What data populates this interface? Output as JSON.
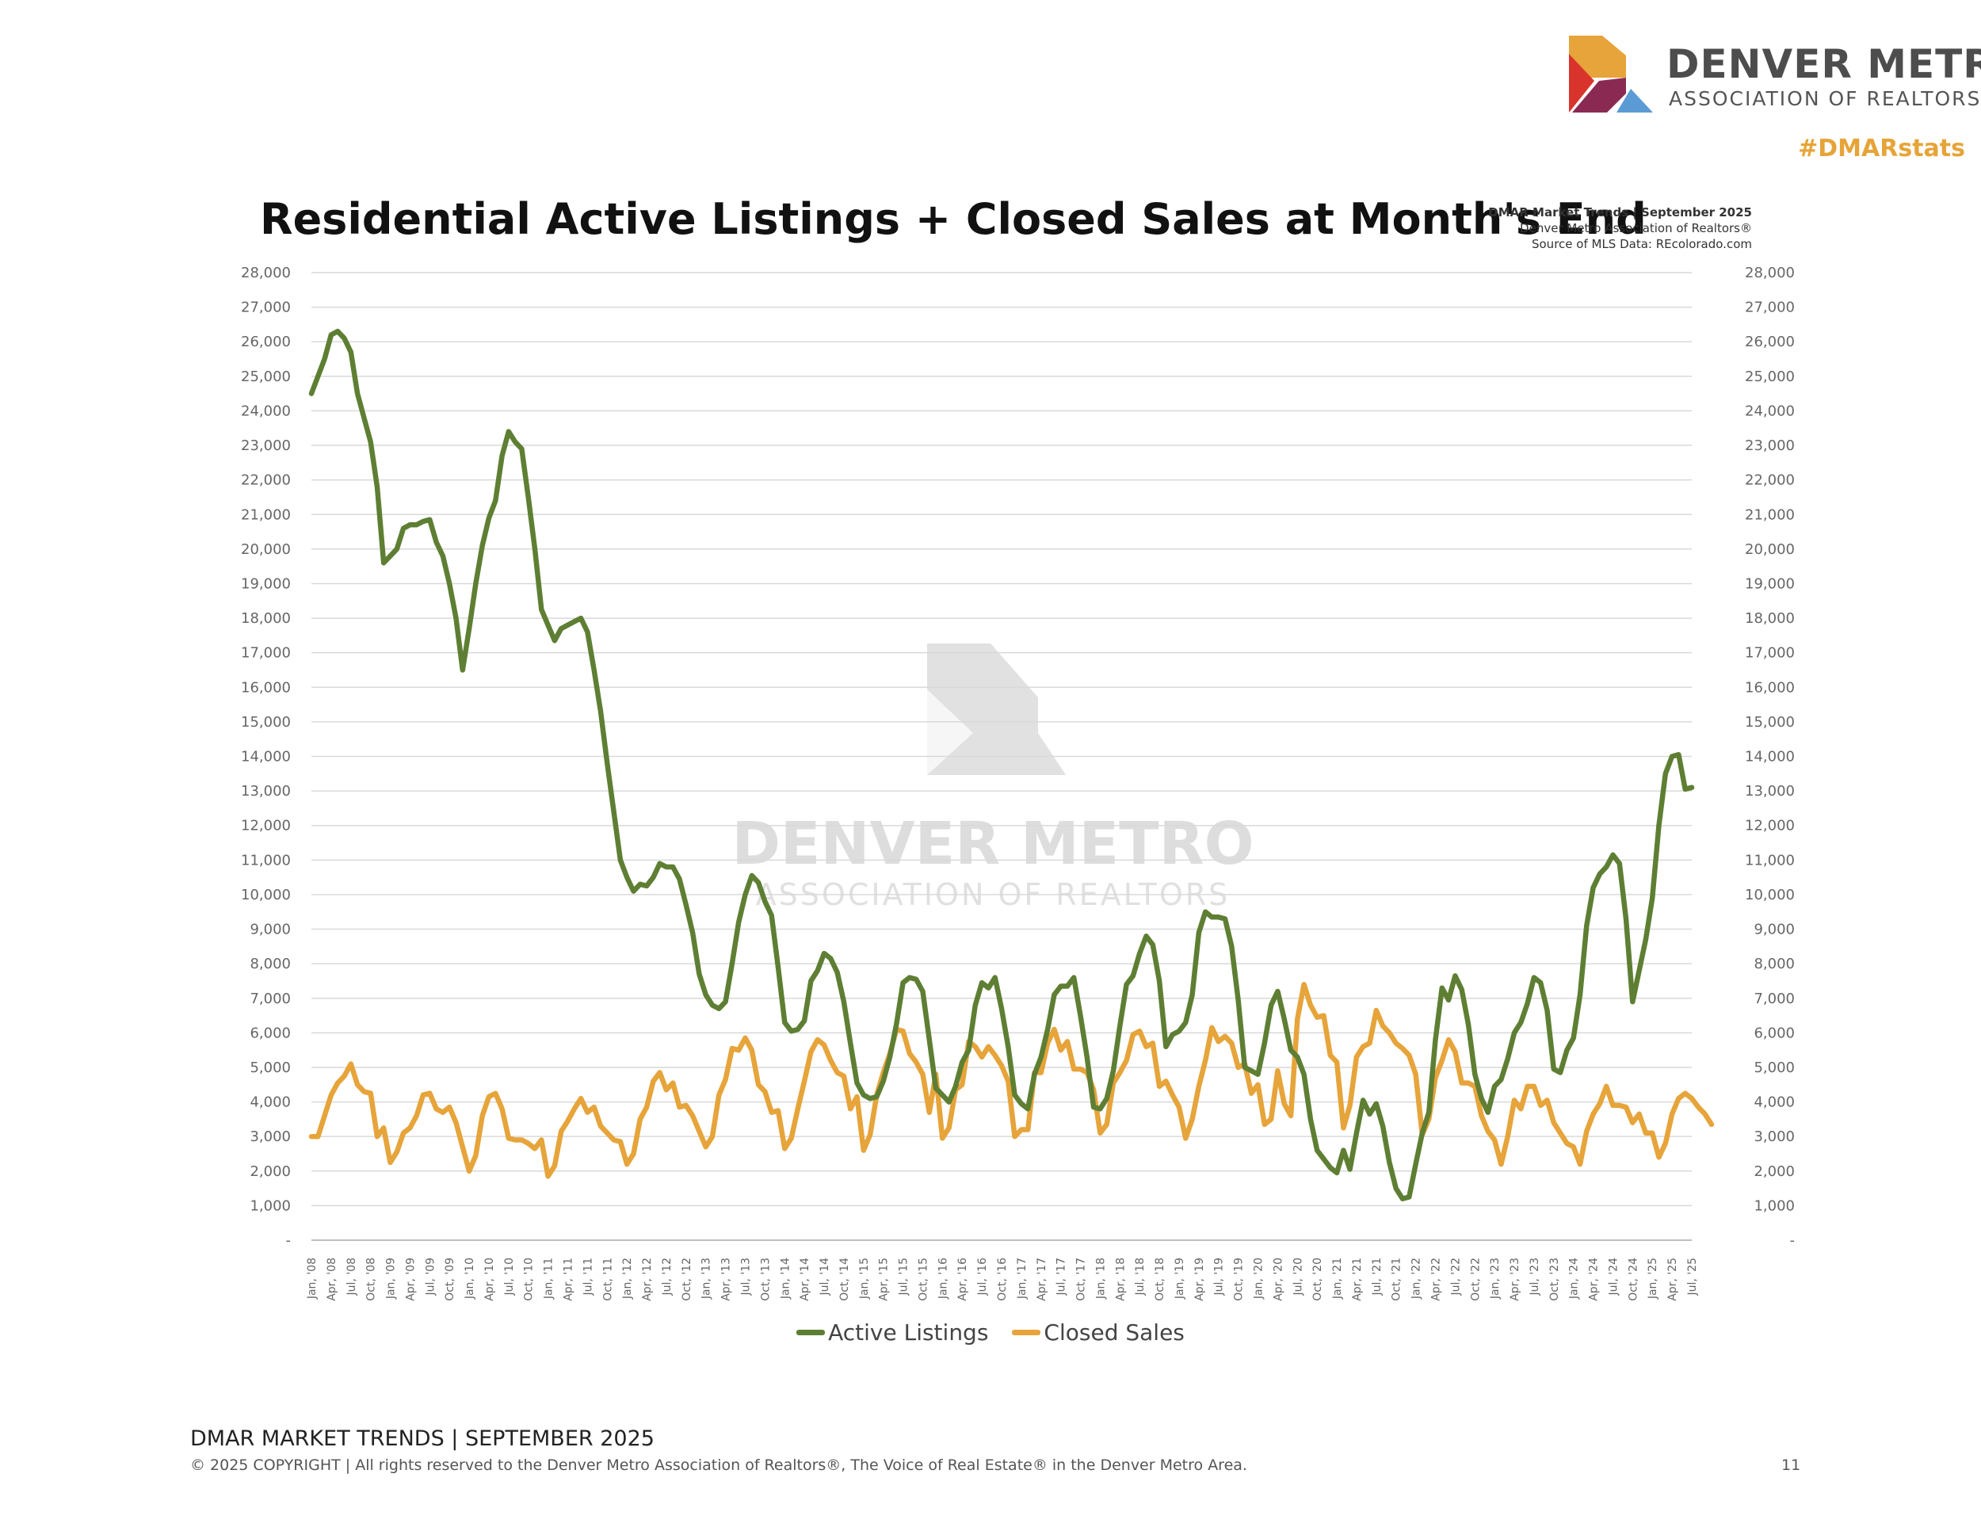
{
  "header": {
    "logo_line1": "DENVER METRO",
    "logo_line2": "ASSOCIATION OF REALTORS",
    "hashtag": "#DMARstats"
  },
  "chart_source": {
    "line1": "DMAR Market Trends | September 2025",
    "line2": "Denver Metro Association of Realtors®",
    "line3": "Source of MLS Data: REcolorado.com"
  },
  "watermark": {
    "line1": "DENVER METRO",
    "line2": "ASSOCIATION OF REALTORS"
  },
  "colors": {
    "active_listings": "#5e7f33",
    "closed_sales": "#e6a43a",
    "logo_orange": "#e6a43a",
    "logo_red": "#d9342b",
    "logo_purple": "#8a2a52",
    "logo_blue": "#5b9bd5"
  },
  "chart_data": {
    "type": "line",
    "title": "Residential Active Listings + Closed Sales at Month's End",
    "xlabel": "",
    "ylabel": "",
    "ylim": [
      0,
      28000
    ],
    "yticks": [
      "-",
      "1,000",
      "2,000",
      "3,000",
      "4,000",
      "5,000",
      "6,000",
      "7,000",
      "8,000",
      "9,000",
      "10,000",
      "11,000",
      "12,000",
      "13,000",
      "14,000",
      "15,000",
      "16,000",
      "17,000",
      "18,000",
      "19,000",
      "20,000",
      "21,000",
      "22,000",
      "23,000",
      "24,000",
      "25,000",
      "26,000",
      "27,000",
      "28,000"
    ],
    "secondary_y_axis": true,
    "grid": true,
    "legend_position": "bottom",
    "x_start": "Jan, '08",
    "x_end": "Sep, '25",
    "x_tick_labels": [
      "Jan, '08",
      "Apr, '08",
      "Jul, '08",
      "Oct, '08",
      "Jan, '09",
      "Apr, '09",
      "Jul, '09",
      "Oct, '09",
      "Jan, '10",
      "Apr, '10",
      "Jul, '10",
      "Oct, '10",
      "Jan, '11",
      "Apr, '11",
      "Jul, '11",
      "Oct, '11",
      "Jan, '12",
      "Apr, '12",
      "Jul, '12",
      "Oct, '12",
      "Jan, '13",
      "Apr, '13",
      "Jul, '13",
      "Oct, '13",
      "Jan, '14",
      "Apr, '14",
      "Jul, '14",
      "Oct, '14",
      "Jan, '15",
      "Apr, '15",
      "Jul, '15",
      "Oct, '15",
      "Jan, '16",
      "Apr, '16",
      "Jul, '16",
      "Oct, '16",
      "Jan, '17",
      "Apr, '17",
      "Jul, '17",
      "Oct, '17",
      "Jan, '18",
      "Apr, '18",
      "Jul, '18",
      "Oct, '18",
      "Jan, '19",
      "Apr, '19",
      "Jul, '19",
      "Oct, '19",
      "Jan, '20",
      "Apr, '20",
      "Jul, '20",
      "Oct, '20",
      "Jan, '21",
      "Apr, '21",
      "Jul, '21",
      "Oct, '21",
      "Jan, '22",
      "Apr, '22",
      "Jul, '22",
      "Oct, '22",
      "Jan, '23",
      "Apr, '23",
      "Jul, '23",
      "Oct, '23",
      "Jan, '24",
      "Apr, '24",
      "Jul, '24",
      "Oct, '24",
      "Jan, '25",
      "Apr, '25",
      "Jul, '25"
    ],
    "series": [
      {
        "name": "Active Listings",
        "color": "#5e7f33",
        "values": [
          24500,
          25000,
          25500,
          26200,
          26300,
          26100,
          25700,
          24500,
          23800,
          23100,
          21800,
          19600,
          19800,
          20000,
          20600,
          20700,
          20700,
          20800,
          20850,
          20200,
          19800,
          19000,
          18000,
          16500,
          17700,
          19000,
          20100,
          20900,
          21400,
          22700,
          23400,
          23100,
          22900,
          21500,
          20000,
          18250,
          17800,
          17350,
          17700,
          17800,
          17900,
          18000,
          17600,
          16500,
          15300,
          13800,
          12400,
          11000,
          10500,
          10100,
          10300,
          10250,
          10500,
          10900,
          10800,
          10800,
          10450,
          9700,
          8900,
          7700,
          7100,
          6800,
          6700,
          6900,
          8000,
          9200,
          10000,
          10550,
          10350,
          9800,
          9400,
          7900,
          6300,
          6050,
          6100,
          6350,
          7500,
          7800,
          8300,
          8150,
          7750,
          6900,
          5700,
          4550,
          4200,
          4100,
          4150,
          4600,
          5300,
          6250,
          7450,
          7600,
          7550,
          7200,
          5800,
          4400,
          4200,
          4000,
          4450,
          5150,
          5500,
          6800,
          7450,
          7300,
          7600,
          6700,
          5600,
          4200,
          3950,
          3800,
          4800,
          5300,
          6100,
          7100,
          7350,
          7350,
          7600,
          6500,
          5300,
          3850,
          3800,
          4100,
          4900,
          6200,
          7400,
          7650,
          8300,
          8800,
          8550,
          7500,
          5600,
          5950,
          6050,
          6300,
          7100,
          8900,
          9500,
          9350,
          9350,
          9300,
          8500,
          6950,
          5000,
          4900,
          4800,
          5700,
          6800,
          7200,
          6400,
          5500,
          5300,
          4800,
          3500,
          2600,
          2350,
          2100,
          1950,
          2600,
          2050,
          3100,
          4050,
          3650,
          3950,
          3300,
          2250,
          1500,
          1200,
          1250,
          2200,
          3100,
          3700,
          5800,
          7300,
          6950,
          7650,
          7250,
          6250,
          4800,
          4100,
          3700,
          4450,
          4650,
          5250,
          6000,
          6300,
          6850,
          7600,
          7450,
          6650,
          4950,
          4850,
          5500,
          5850,
          7100,
          9100,
          10200,
          10600,
          10800,
          11150,
          10900,
          9300,
          6900,
          7800,
          8700,
          9900,
          12000,
          13500,
          14000,
          14050,
          13050,
          13100
        ]
      },
      {
        "name": "Closed Sales",
        "color": "#e6a43a",
        "values": [
          3000,
          3000,
          3600,
          4200,
          4550,
          4750,
          5100,
          4500,
          4300,
          4250,
          3000,
          3250,
          2250,
          2550,
          3100,
          3250,
          3600,
          4200,
          4250,
          3800,
          3700,
          3850,
          3400,
          2700,
          2000,
          2450,
          3600,
          4150,
          4250,
          3800,
          2950,
          2900,
          2900,
          2800,
          2650,
          2900,
          1850,
          2150,
          3150,
          3450,
          3800,
          4100,
          3700,
          3850,
          3300,
          3100,
          2900,
          2850,
          2200,
          2500,
          3500,
          3850,
          4600,
          4850,
          4350,
          4550,
          3850,
          3900,
          3600,
          3150,
          2700,
          3000,
          4200,
          4650,
          5550,
          5500,
          5850,
          5500,
          4500,
          4300,
          3700,
          3750,
          2650,
          2950,
          3800,
          4600,
          5450,
          5800,
          5650,
          5200,
          4850,
          4750,
          3800,
          4150,
          2600,
          3050,
          4200,
          4850,
          5400,
          6100,
          6050,
          5400,
          5150,
          4800,
          3700,
          4800,
          2950,
          3250,
          4350,
          4500,
          5750,
          5600,
          5300,
          5600,
          5350,
          5050,
          4600,
          3000,
          3200,
          3200,
          4850,
          4850,
          5700,
          6100,
          5500,
          5750,
          4950,
          4950,
          4850,
          4350,
          3100,
          3350,
          4550,
          4850,
          5200,
          5950,
          6050,
          5600,
          5700,
          4450,
          4600,
          4200,
          3850,
          2950,
          3500,
          4450,
          5200,
          6150,
          5750,
          5900,
          5700,
          5000,
          5100,
          4250,
          4500,
          3350,
          3500,
          4900,
          3950,
          3600,
          6400,
          7400,
          6800,
          6450,
          6500,
          5350,
          5150,
          3250,
          3900,
          5300,
          5600,
          5700,
          6650,
          6200,
          6000,
          5700,
          5550,
          5350,
          4800,
          3050,
          3500,
          4700,
          5200,
          5800,
          5450,
          4550,
          4550,
          4450,
          3600,
          3150,
          2900,
          2200,
          3000,
          4050,
          3800,
          4450,
          4450,
          3900,
          4050,
          3400,
          3100,
          2800,
          2700,
          2200,
          3150,
          3650,
          3950,
          4450,
          3900,
          3900,
          3850,
          3400,
          3650,
          3100,
          3100,
          2400,
          2800,
          3650,
          4100,
          4250,
          4100,
          3850,
          3650,
          3350
        ]
      }
    ]
  },
  "footer": {
    "line1": "DMAR MARKET TRENDS | SEPTEMBER 2025",
    "line2": "© 2025 COPYRIGHT | All rights reserved to the Denver Metro Association of Realtors®, The Voice of Real Estate® in the Denver Metro Area.",
    "page_number": "11"
  }
}
